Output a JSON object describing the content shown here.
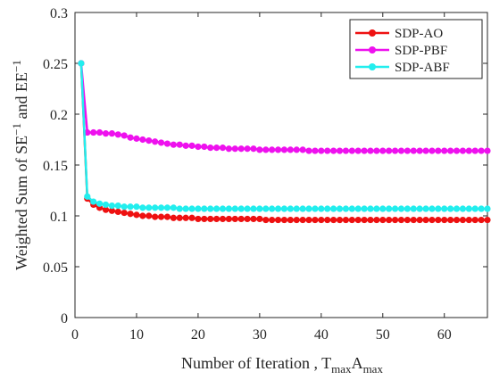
{
  "chart_data": {
    "type": "line",
    "xlabel": "Number of Iteration , T",
    "xlabel_sub1": "max",
    "xlabel_mid": "A",
    "xlabel_sub2": "max",
    "ylabel": "Weighted Sum of SE",
    "ylabel_sup1": "−1",
    "ylabel_mid": " and EE",
    "ylabel_sup2": "−1",
    "xlim": [
      0,
      67
    ],
    "ylim": [
      0,
      0.3
    ],
    "xticks": [
      0,
      10,
      20,
      30,
      40,
      50,
      60
    ],
    "xtick_labels": [
      "0",
      "10",
      "20",
      "30",
      "40",
      "50",
      "60"
    ],
    "yticks": [
      0,
      0.05,
      0.1,
      0.15,
      0.2,
      0.25,
      0.3
    ],
    "ytick_labels": [
      "0",
      "0.05",
      "0.1",
      "0.15",
      "0.2",
      "0.25",
      "0.3"
    ],
    "grid": false,
    "legend_position": "top-right",
    "series": [
      {
        "name": "SDP-AO",
        "color": "#ee1111",
        "values": [
          0.25,
          0.117,
          0.111,
          0.108,
          0.106,
          0.105,
          0.104,
          0.103,
          0.102,
          0.101,
          0.1,
          0.1,
          0.099,
          0.099,
          0.099,
          0.098,
          0.098,
          0.098,
          0.098,
          0.097,
          0.097,
          0.097,
          0.097,
          0.097,
          0.097,
          0.097,
          0.097,
          0.097,
          0.097,
          0.097,
          0.096,
          0.096,
          0.096,
          0.096,
          0.096,
          0.096,
          0.096,
          0.096,
          0.096,
          0.096,
          0.096,
          0.096,
          0.096,
          0.096,
          0.096,
          0.096,
          0.096,
          0.096,
          0.096,
          0.096,
          0.096,
          0.096,
          0.096,
          0.096,
          0.096,
          0.096,
          0.096,
          0.096,
          0.096,
          0.096,
          0.096,
          0.096,
          0.096,
          0.096,
          0.096,
          0.096,
          0.096
        ]
      },
      {
        "name": "SDP-PBF",
        "color": "#ee11ee",
        "values": [
          0.25,
          0.182,
          0.182,
          0.182,
          0.181,
          0.181,
          0.18,
          0.179,
          0.177,
          0.176,
          0.175,
          0.174,
          0.173,
          0.172,
          0.171,
          0.17,
          0.17,
          0.169,
          0.169,
          0.168,
          0.168,
          0.167,
          0.167,
          0.167,
          0.166,
          0.166,
          0.166,
          0.166,
          0.166,
          0.165,
          0.165,
          0.165,
          0.165,
          0.165,
          0.165,
          0.165,
          0.165,
          0.164,
          0.164,
          0.164,
          0.164,
          0.164,
          0.164,
          0.164,
          0.164,
          0.164,
          0.164,
          0.164,
          0.164,
          0.164,
          0.164,
          0.164,
          0.164,
          0.164,
          0.164,
          0.164,
          0.164,
          0.164,
          0.164,
          0.164,
          0.164,
          0.164,
          0.164,
          0.164,
          0.164,
          0.164,
          0.164
        ]
      },
      {
        "name": "SDP-ABF",
        "color": "#22eeee",
        "values": [
          0.25,
          0.119,
          0.114,
          0.112,
          0.111,
          0.11,
          0.11,
          0.109,
          0.109,
          0.109,
          0.108,
          0.108,
          0.108,
          0.108,
          0.108,
          0.108,
          0.107,
          0.107,
          0.107,
          0.107,
          0.107,
          0.107,
          0.107,
          0.107,
          0.107,
          0.107,
          0.107,
          0.107,
          0.107,
          0.107,
          0.107,
          0.107,
          0.107,
          0.107,
          0.107,
          0.107,
          0.107,
          0.107,
          0.107,
          0.107,
          0.107,
          0.107,
          0.107,
          0.107,
          0.107,
          0.107,
          0.107,
          0.107,
          0.107,
          0.107,
          0.107,
          0.107,
          0.107,
          0.107,
          0.107,
          0.107,
          0.107,
          0.107,
          0.107,
          0.107,
          0.107,
          0.107,
          0.107,
          0.107,
          0.107,
          0.107,
          0.107
        ]
      }
    ]
  }
}
